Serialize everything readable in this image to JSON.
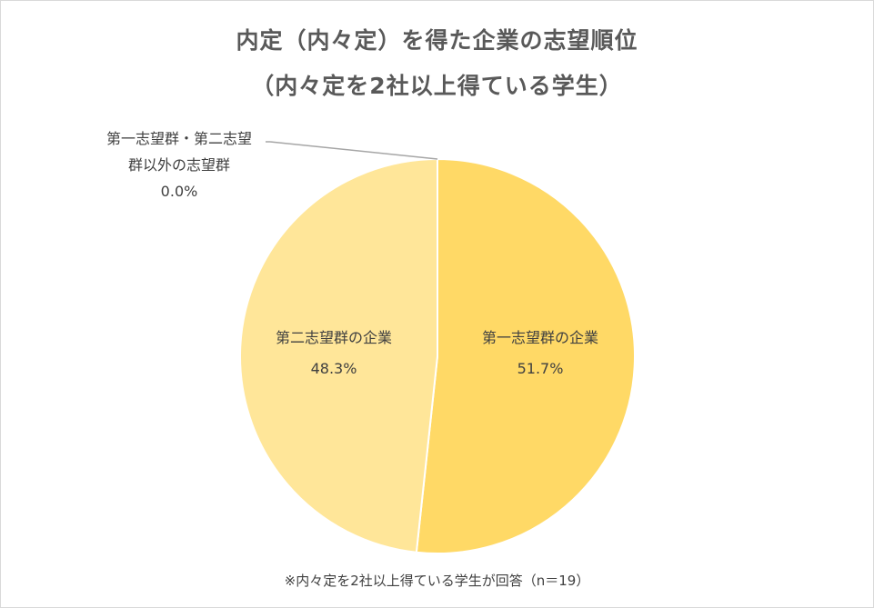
{
  "chart_data": {
    "type": "pie",
    "title_line1": "内定（内々定）を得た企業の志望順位",
    "title_line2": "（内々定を2社以上得ている学生）",
    "slices": [
      {
        "name": "第一志望群の企業",
        "value": 51.7,
        "label": "51.7%",
        "color": "#FFD966"
      },
      {
        "name": "第二志望群の企業",
        "value": 48.3,
        "label": "48.3%",
        "color": "#FFE699"
      },
      {
        "name_line1": "第一志望群・第二志望",
        "name_line2": "群以外の志望群",
        "value": 0.0,
        "label": "0.0%",
        "color": "#FFF2CC"
      }
    ],
    "footnote": "※内々定を2社以上得ている学生が回答（n＝19）"
  }
}
